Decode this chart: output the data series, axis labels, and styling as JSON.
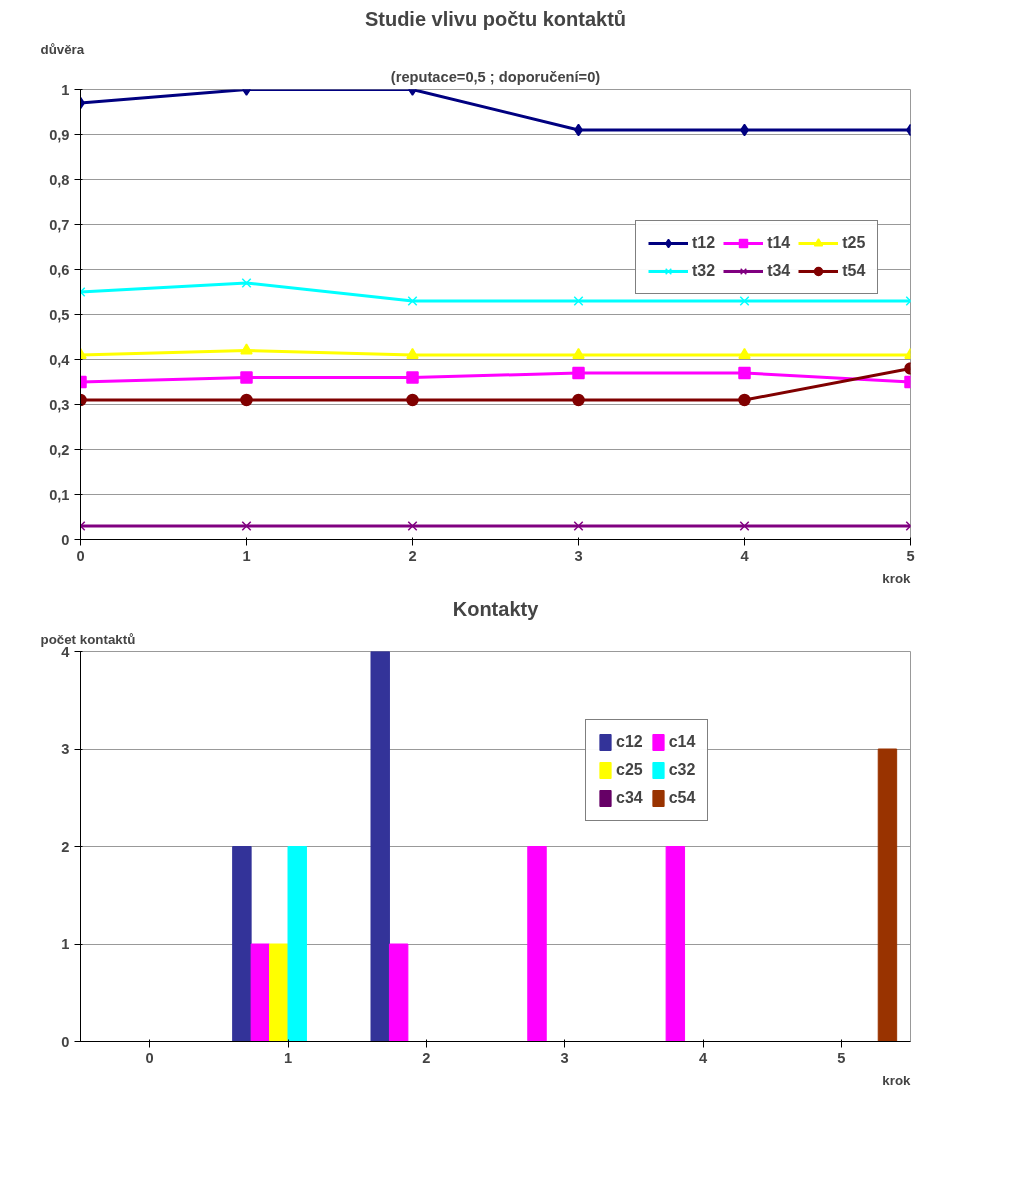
{
  "chart_data": [
    {
      "type": "line",
      "title": "Studie vlivu počtu kontaktů",
      "subtitle": "(reputace=0,5 ; doporučení=0)",
      "xlabel": "krok",
      "ylabel": "důvěra",
      "x": [
        0,
        1,
        2,
        3,
        4,
        5
      ],
      "xlim": [
        0,
        5
      ],
      "xticks": [
        0,
        1,
        2,
        3,
        4,
        5
      ],
      "ylim": [
        0,
        1
      ],
      "yticks": [
        0,
        {
          "value": 0.1,
          "label": "0,1"
        },
        {
          "value": 0.2,
          "label": "0,2"
        },
        {
          "value": 0.3,
          "label": "0,3"
        },
        {
          "value": 0.4,
          "label": "0,4"
        },
        {
          "value": 0.5,
          "label": "0,5"
        },
        {
          "value": 0.6,
          "label": "0,6"
        },
        {
          "value": 0.7,
          "label": "0,7"
        },
        {
          "value": 0.8,
          "label": "0,8"
        },
        {
          "value": 0.9,
          "label": "0,9"
        },
        1
      ],
      "grid": "y",
      "legend": "top right",
      "line_style": "solid",
      "series": [
        {
          "name": "t12",
          "color": "#000080",
          "marker": "diamond",
          "values": [
            0.97,
            1,
            1,
            0.91,
            0.91,
            0.91
          ]
        },
        {
          "name": "t14",
          "color": "#ff00ff",
          "marker": "square",
          "values": [
            0.35,
            0.36,
            0.36,
            0.37,
            0.37,
            0.35
          ]
        },
        {
          "name": "t25",
          "color": "#ffff00",
          "marker": "triangle",
          "values": [
            0.41,
            0.42,
            0.41,
            0.41,
            0.41,
            0.41
          ]
        },
        {
          "name": "t32",
          "color": "#00ffff",
          "marker": "cross",
          "values": [
            0.55,
            0.57,
            0.53,
            0.53,
            0.53,
            0.53
          ]
        },
        {
          "name": "t34",
          "color": "#800080",
          "marker": "cross",
          "values": [
            0.03,
            0.03,
            0.03,
            0.03,
            0.03,
            0.03
          ]
        },
        {
          "name": "t54",
          "color": "#800000",
          "marker": "circle",
          "values": [
            0.31,
            0.31,
            0.31,
            0.31,
            0.31,
            0.38
          ]
        }
      ]
    },
    {
      "type": "bar",
      "title": "Kontakty",
      "xlabel": "krok",
      "ylabel": "počet kontaktů",
      "categories": [
        "0",
        "1",
        "2",
        "3",
        "4",
        "5"
      ],
      "ylim": [
        0,
        4
      ],
      "yticks": [
        0,
        1,
        2,
        3,
        4
      ],
      "grid": "y",
      "legend": "top right",
      "series": [
        {
          "name": "c12",
          "color": "#333399",
          "values": [
            0,
            2,
            4,
            0,
            0,
            0
          ]
        },
        {
          "name": "c14",
          "color": "#ff00ff",
          "values": [
            0,
            1,
            1,
            2,
            2,
            0
          ]
        },
        {
          "name": "c25",
          "color": "#ffff00",
          "values": [
            0,
            1,
            0,
            0,
            0,
            0
          ]
        },
        {
          "name": "c32",
          "color": "#00ffff",
          "values": [
            0,
            2,
            0,
            0,
            0,
            0
          ]
        },
        {
          "name": "c34",
          "color": "#660066",
          "values": [
            0,
            0,
            0,
            0,
            0,
            0
          ]
        },
        {
          "name": "c54",
          "color": "#993300",
          "values": [
            0,
            0,
            0,
            0,
            0,
            3
          ]
        }
      ]
    }
  ]
}
